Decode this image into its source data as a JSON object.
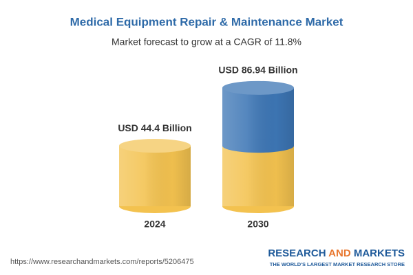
{
  "chart_data": {
    "type": "cylinder",
    "title": "Medical Equipment Repair & Maintenance Market",
    "subtitle": "Market forecast to grow at a CAGR of 11.8%",
    "categories": [
      "2024",
      "2030"
    ],
    "values": [
      44.4,
      86.94
    ],
    "value_labels": [
      "USD 44.4 Billion",
      "USD 86.94 Billion"
    ],
    "color": "#f3c24f",
    "growth_color": "#3d76b5"
  },
  "footer": {
    "url": "https://www.researchandmarkets.com/reports/5206475",
    "brand": [
      "RESEARCH",
      "AND",
      "MARKETS"
    ],
    "tagline": "THE WORLD'S LARGEST MARKET RESEARCH STORE"
  }
}
